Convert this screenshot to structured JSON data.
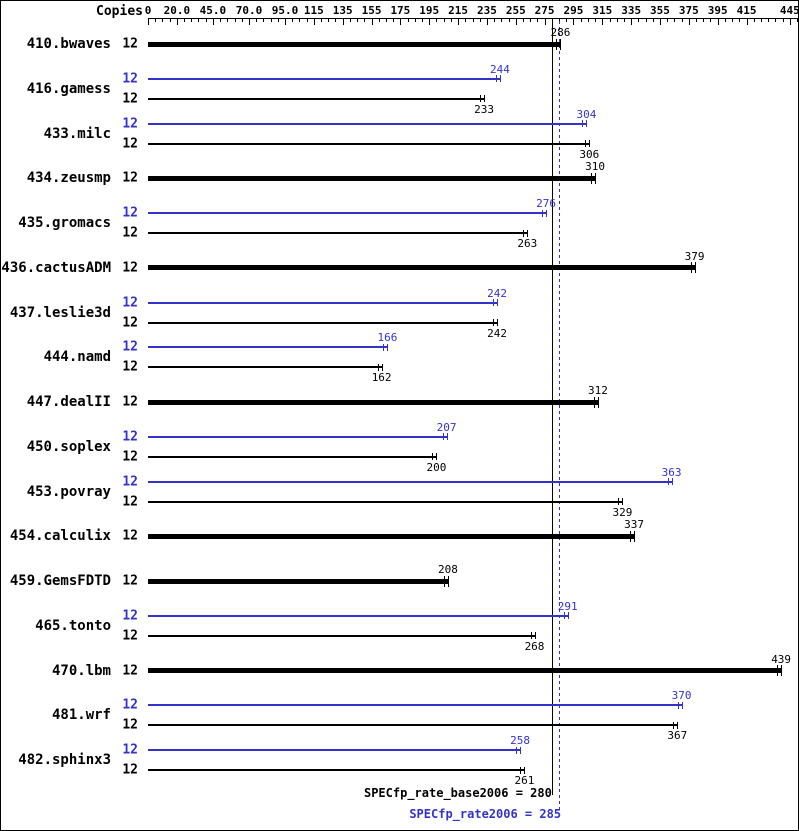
{
  "header": {
    "copies_label": "Copies"
  },
  "footer": {
    "base_label": "SPECfp_rate_base2006 = 280",
    "peak_label": "SPECfp_rate2006 = 285"
  },
  "colors": {
    "peak": "#3333cc",
    "base": "#000000",
    "background": "#ffffff"
  },
  "chart_data": {
    "type": "bar",
    "orientation": "horizontal",
    "title": "",
    "xlabel": "",
    "ylabel": "Copies",
    "legend": "none",
    "axis": {
      "min": 0,
      "max": 450,
      "minor_tick_step": 5,
      "ticks": [
        {
          "value": 0,
          "label": "0"
        },
        {
          "value": 20,
          "label": "20.0"
        },
        {
          "value": 45,
          "label": "45.0"
        },
        {
          "value": 70,
          "label": "70.0"
        },
        {
          "value": 95,
          "label": "95.0"
        },
        {
          "value": 115,
          "label": "115"
        },
        {
          "value": 135,
          "label": "135"
        },
        {
          "value": 155,
          "label": "155"
        },
        {
          "value": 175,
          "label": "175"
        },
        {
          "value": 195,
          "label": "195"
        },
        {
          "value": 215,
          "label": "215"
        },
        {
          "value": 235,
          "label": "235"
        },
        {
          "value": 255,
          "label": "255"
        },
        {
          "value": 275,
          "label": "275"
        },
        {
          "value": 295,
          "label": "295"
        },
        {
          "value": 315,
          "label": "315"
        },
        {
          "value": 335,
          "label": "335"
        },
        {
          "value": 355,
          "label": "355"
        },
        {
          "value": 375,
          "label": "375"
        },
        {
          "value": 395,
          "label": "395"
        },
        {
          "value": 415,
          "label": "415"
        },
        {
          "value": 445,
          "label": "445"
        }
      ]
    },
    "reference_lines": [
      {
        "name": "base-mean",
        "value": 280,
        "style": "solid",
        "color": "#000000"
      },
      {
        "name": "peak-mean",
        "value": 285,
        "style": "dotted",
        "color": "#3333cc"
      }
    ],
    "benchmarks": [
      {
        "name": "410.bwaves",
        "copies": 12,
        "base": 286,
        "peak": null
      },
      {
        "name": "416.gamess",
        "copies": 12,
        "base": 233,
        "peak": 244
      },
      {
        "name": "433.milc",
        "copies": 12,
        "base": 306,
        "peak": 304
      },
      {
        "name": "434.zeusmp",
        "copies": 12,
        "base": 310,
        "peak": null
      },
      {
        "name": "435.gromacs",
        "copies": 12,
        "base": 263,
        "peak": 276
      },
      {
        "name": "436.cactusADM",
        "copies": 12,
        "base": 379,
        "peak": null
      },
      {
        "name": "437.leslie3d",
        "copies": 12,
        "base": 242,
        "peak": 242
      },
      {
        "name": "444.namd",
        "copies": 12,
        "base": 162,
        "peak": 166
      },
      {
        "name": "447.dealII",
        "copies": 12,
        "base": 312,
        "peak": null
      },
      {
        "name": "450.soplex",
        "copies": 12,
        "base": 200,
        "peak": 207
      },
      {
        "name": "453.povray",
        "copies": 12,
        "base": 329,
        "peak": 363
      },
      {
        "name": "454.calculix",
        "copies": 12,
        "base": 337,
        "peak": null
      },
      {
        "name": "459.GemsFDTD",
        "copies": 12,
        "base": 208,
        "peak": null
      },
      {
        "name": "465.tonto",
        "copies": 12,
        "base": 268,
        "peak": 291
      },
      {
        "name": "470.lbm",
        "copies": 12,
        "base": 439,
        "peak": null
      },
      {
        "name": "481.wrf",
        "copies": 12,
        "base": 367,
        "peak": 370
      },
      {
        "name": "482.sphinx3",
        "copies": 12,
        "base": 261,
        "peak": 258
      }
    ]
  }
}
